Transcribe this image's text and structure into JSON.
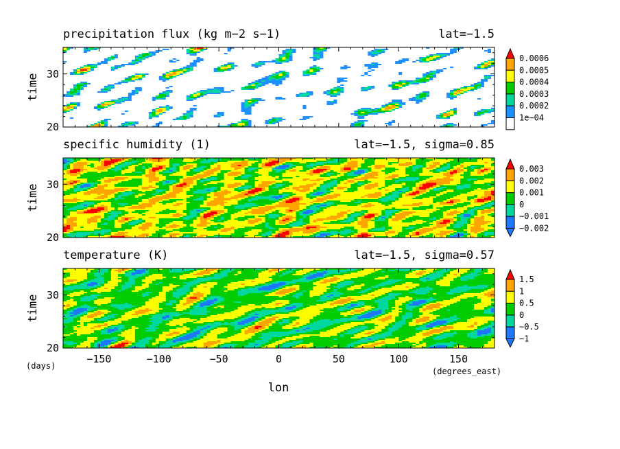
{
  "chart_data": {
    "type": "heatmap",
    "xlabel": "lon",
    "xunit": "(degrees_east)",
    "yunit": "(days)",
    "xlim": [
      -180,
      180
    ],
    "xticks": [
      -150,
      -100,
      -50,
      0,
      50,
      100,
      150
    ],
    "xtick_labels": [
      "−150",
      "−100",
      "−50",
      "0",
      "50",
      "100",
      "150"
    ],
    "panels": [
      {
        "title": "precipitation flux (kg m−2 s−1)",
        "subtitle": "lat=−1.5",
        "ylabel": "time",
        "ylim": [
          20,
          35
        ],
        "yticks": [
          20,
          30
        ],
        "colorbar": {
          "colors": [
            "#ffffff",
            "#1e90ff",
            "#00d8a0",
            "#00cc00",
            "#ffff00",
            "#ffa500",
            "#ff0000"
          ],
          "labels": [
            "0.0006",
            "0.0005",
            "0.0004",
            "0.0003",
            "0.0002",
            "1e−04"
          ],
          "min_arrow": false
        }
      },
      {
        "title": "specific humidity (1)",
        "subtitle": "lat=−1.5, sigma=0.85",
        "ylabel": "time",
        "ylim": [
          20,
          35
        ],
        "yticks": [
          20,
          30
        ],
        "colorbar": {
          "colors": [
            "#1e78ff",
            "#00d8a0",
            "#00cc00",
            "#ffff00",
            "#ffa500",
            "#ff0000"
          ],
          "labels": [
            "0.003",
            "0.002",
            "0.001",
            "0",
            "−0.001",
            "−0.002"
          ],
          "min_arrow": true
        }
      },
      {
        "title": "temperature (K)",
        "subtitle": "lat=−1.5, sigma=0.57",
        "ylabel": "time",
        "ylim": [
          20,
          35
        ],
        "yticks": [
          20,
          30
        ],
        "colorbar": {
          "colors": [
            "#1e78ff",
            "#00d8a0",
            "#00cc00",
            "#ffff00",
            "#ffa500",
            "#ff0000"
          ],
          "labels": [
            "1.5",
            "1",
            "0.5",
            "0",
            "−0.5",
            "−1"
          ],
          "min_arrow": true
        }
      }
    ]
  }
}
